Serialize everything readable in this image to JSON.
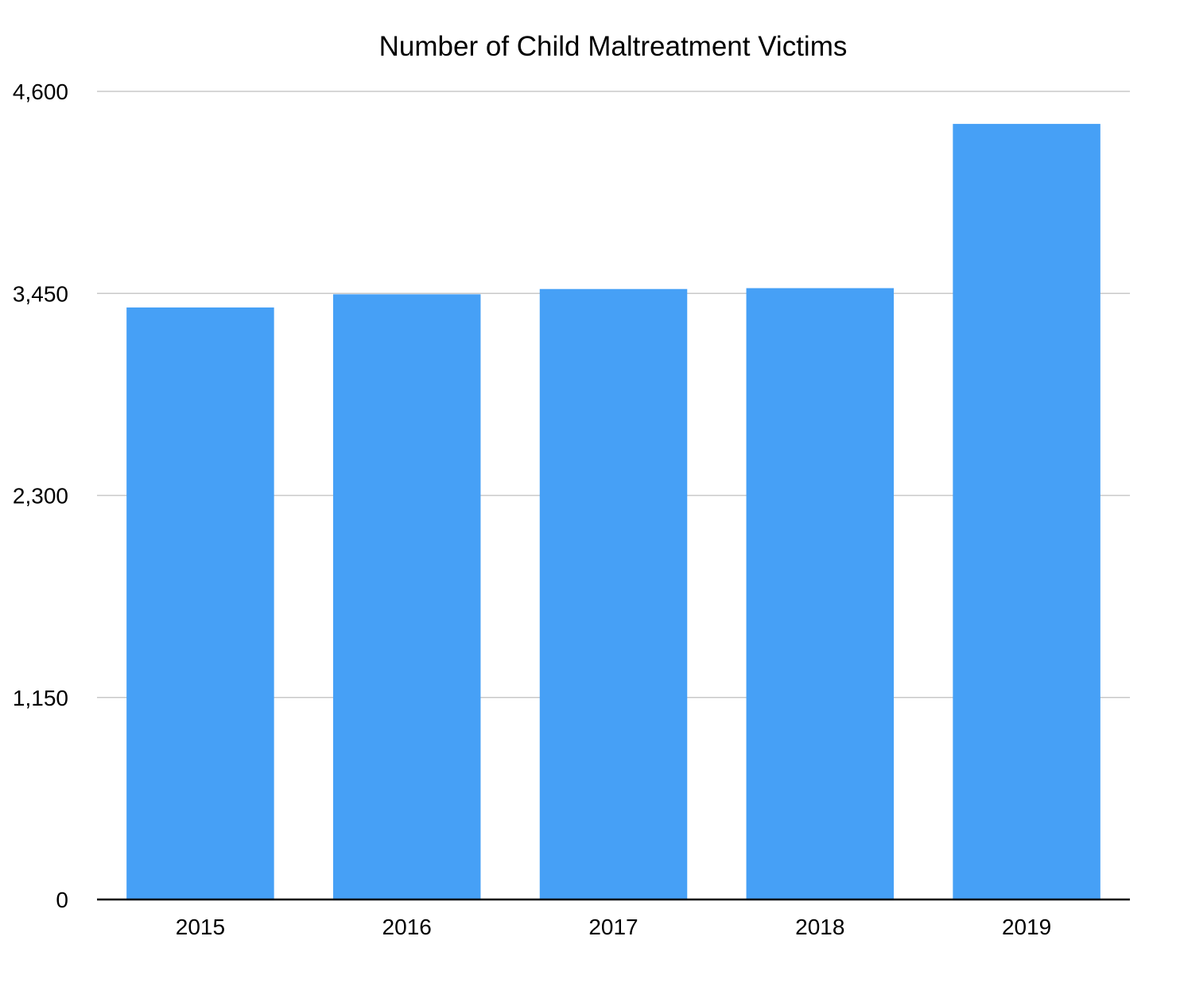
{
  "chart_data": {
    "type": "bar",
    "title": "Number of Child Maltreatment Victims",
    "xlabel": "",
    "ylabel": "",
    "categories": [
      "2015",
      "2016",
      "2017",
      "2018",
      "2019"
    ],
    "values": [
      3370,
      3445,
      3475,
      3480,
      4415
    ],
    "ylim": [
      0,
      4600
    ],
    "yticks": [
      0,
      1150,
      2300,
      3450,
      4600
    ],
    "ytick_labels": [
      "0",
      "1,150",
      "2,300",
      "3,450",
      "4,600"
    ],
    "grid": true,
    "legend": "none",
    "colors": {
      "bar": "#46a0f6",
      "grid": "#c8c8c8",
      "axis": "#000000"
    }
  }
}
